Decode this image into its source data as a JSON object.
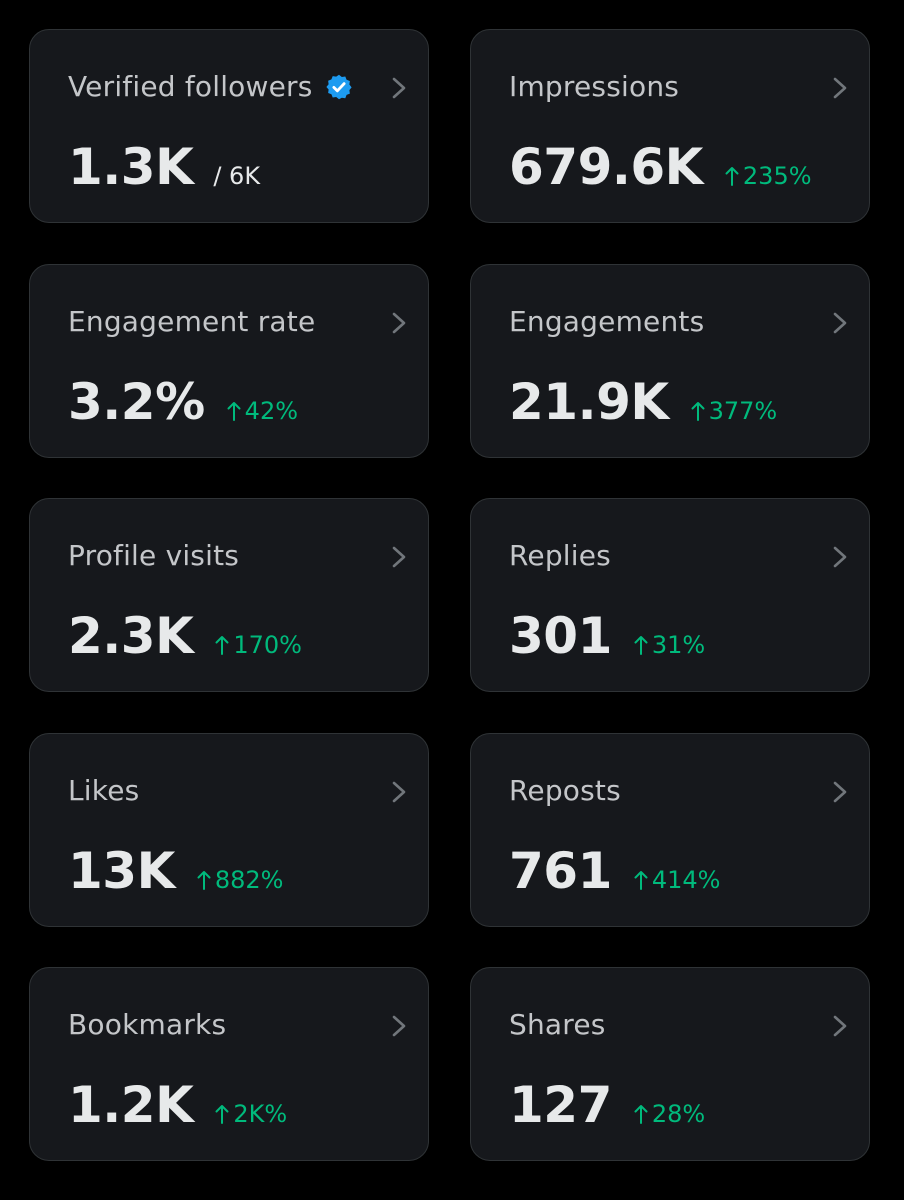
{
  "colors": {
    "background": "#000000",
    "card": "#16181c",
    "card_border": "#2f3336",
    "label": "#c4c6c9",
    "value": "#e7e9ea",
    "positive": "#00ba7c",
    "verified": "#1d9bf0"
  },
  "icons": {
    "verified": "verified-badge-icon",
    "chevron": "chevron-right-icon",
    "change": "arrow-up-icon"
  },
  "cards": [
    {
      "label": "Verified followers",
      "value": "1.3K",
      "sub": "/ 6K"
    },
    {
      "label": "Impressions",
      "value": "679.6K",
      "change": "235%"
    },
    {
      "label": "Engagement rate",
      "value": "3.2%",
      "change": "42%"
    },
    {
      "label": "Engagements",
      "value": "21.9K",
      "change": "377%"
    },
    {
      "label": "Profile visits",
      "value": "2.3K",
      "change": "170%"
    },
    {
      "label": "Replies",
      "value": "301",
      "change": "31%"
    },
    {
      "label": "Likes",
      "value": "13K",
      "change": "882%"
    },
    {
      "label": "Reposts",
      "value": "761",
      "change": "414%"
    },
    {
      "label": "Bookmarks",
      "value": "1.2K",
      "change": "2K%"
    },
    {
      "label": "Shares",
      "value": "127",
      "change": "28%"
    }
  ]
}
